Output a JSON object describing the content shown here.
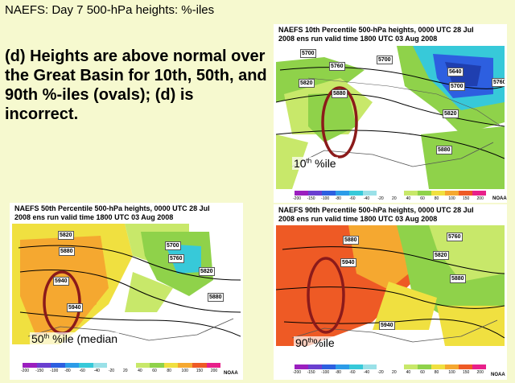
{
  "slide": {
    "title": "NAEFS:  Day 7 500-hPa heights: %-iles",
    "claim": "(d) Heights are above normal over the Great Basin for 10th, 50th, and 90th %-iles (ovals); (d) is incorrect."
  },
  "colorbar": {
    "ticks": [
      "-200",
      "-150",
      "-100",
      "-80",
      "-60",
      "-40",
      "-20",
      "20",
      "40",
      "60",
      "80",
      "100",
      "150",
      "200"
    ],
    "colors": [
      "#9b1fbf",
      "#6a3fd0",
      "#2d5fe0",
      "#2c9ce8",
      "#37c9d9",
      "#9ae1e8",
      "#ffffff",
      "#ffffff",
      "#c8e86a",
      "#8fd24a",
      "#f0e040",
      "#f5a830",
      "#ee5a25",
      "#e8208a"
    ],
    "credit": "NOAA"
  },
  "panels": {
    "p10": {
      "title": "NAEFS 10th Percentile 500-hPa heights, 0000 UTC  28 Jul\n2008 ens run valid time 1800 UTC  03 Aug 2008",
      "label_num": "10",
      "label_suffix": "th",
      "label_text": " %ile",
      "contours": [
        "5700",
        "5760",
        "5700",
        "5640",
        "5820",
        "5880",
        "5700",
        "5760",
        "5820",
        "5880"
      ]
    },
    "p50": {
      "title": "NAEFS 50th Percentile 500-hPa heights, 0000 UTC  28 Jul\n2008 ens run valid time 1800 UTC  03 Aug 2008",
      "label_num": "50",
      "label_suffix": "th",
      "label_text": " %ile (median",
      "contours": [
        "5820",
        "5880",
        "5940",
        "5940",
        "5700",
        "5760",
        "5820",
        "5880"
      ]
    },
    "p90": {
      "title": "NAEFS 90th Percentile 500-hPa heights, 0000 UTC  28 Jul\n2008 ens run valid time 1800 UTC  03 Aug 2008",
      "label_num": "90",
      "label_suffix": "th",
      "label_text": "%ile",
      "contours": [
        "5880",
        "5760",
        "5820",
        "5940",
        "5880",
        "5940"
      ]
    }
  }
}
